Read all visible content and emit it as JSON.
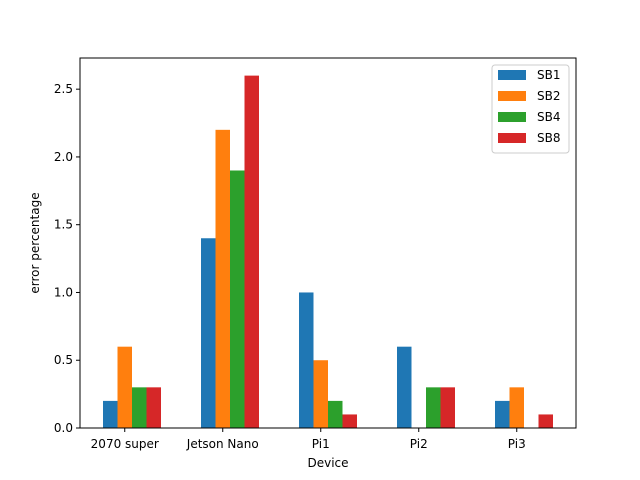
{
  "chart_data": {
    "type": "bar",
    "title": "",
    "xlabel": "Device",
    "ylabel": "error percentage",
    "categories": [
      "2070 super",
      "Jetson Nano",
      "Pi1",
      "Pi2",
      "Pi3"
    ],
    "series": [
      {
        "name": "SB1",
        "color": "#1f77b4",
        "values": [
          0.2,
          1.4,
          1.0,
          0.6,
          0.2
        ]
      },
      {
        "name": "SB2",
        "color": "#ff7f0e",
        "values": [
          0.6,
          2.2,
          0.5,
          0.0,
          0.3
        ]
      },
      {
        "name": "SB4",
        "color": "#2ca02c",
        "values": [
          0.3,
          1.9,
          0.2,
          0.3,
          0.0
        ]
      },
      {
        "name": "SB8",
        "color": "#d62728",
        "values": [
          0.3,
          2.6,
          0.1,
          0.3,
          0.1
        ]
      }
    ],
    "ylim": [
      0,
      2.73
    ],
    "yticks": [
      "0.0",
      "0.5",
      "1.0",
      "1.5",
      "2.0",
      "2.5"
    ],
    "grid": false,
    "legend_position": "top-right"
  }
}
